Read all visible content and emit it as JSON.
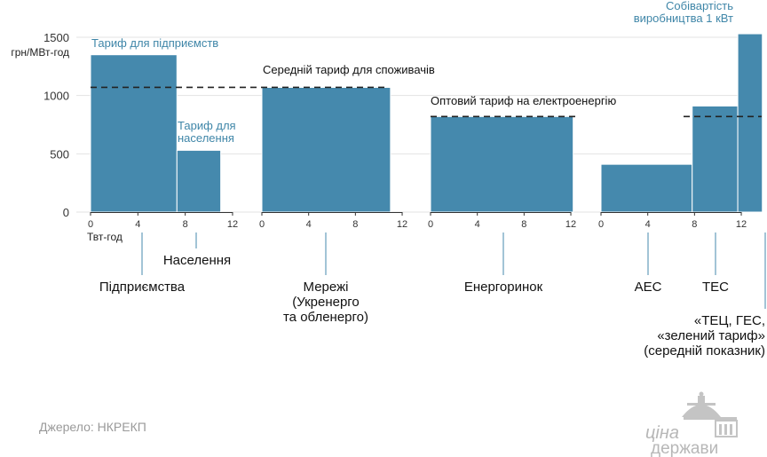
{
  "chart_data": {
    "type": "bar",
    "ylabel": "грн/МВт-год",
    "xlabel": "Твт-год",
    "ylim": [
      0,
      1500
    ],
    "yticks": [
      0,
      500,
      1000,
      1500
    ],
    "xticks": [
      "0",
      "4",
      "8",
      "12"
    ],
    "grid": true,
    "panels": [
      {
        "name": "Підприємства / Населення",
        "bars": [
          {
            "category": "Підприємства",
            "x_start": 0,
            "width": 7.3,
            "value": 1350,
            "label": "Тариф для підприємств"
          },
          {
            "category": "Населення",
            "x_start": 7.3,
            "width": 3.7,
            "value": 530,
            "label": "Тариф для населення"
          }
        ]
      },
      {
        "name": "Мережі",
        "bars": [
          {
            "category": "Мережі (Укренерго та обленерго)",
            "x_start": 0,
            "width": 11,
            "value": 1070
          }
        ],
        "reference_line": {
          "value": 1070,
          "label": "Середній тариф для споживачів"
        }
      },
      {
        "name": "Енергоринок",
        "bars": [
          {
            "category": "Енергоринок",
            "x_start": 0,
            "width": 12.2,
            "value": 820
          }
        ],
        "reference_line": {
          "value": 820,
          "label": "Оптовий тариф на електроенергію"
        }
      },
      {
        "name": "Собівартість виробництва 1 кВт",
        "bars": [
          {
            "category": "АЕС",
            "x_start": 0,
            "width": 7.8,
            "value": 410
          },
          {
            "category": "ТЕС",
            "x_start": 7.8,
            "width": 3.9,
            "value": 910
          },
          {
            "category": "«ТЕЦ, ГЕС, «зелений тариф» (середній показник)",
            "x_start": 11.7,
            "width": 2.1,
            "value": 1530
          }
        ],
        "reference_line": {
          "value": 820
        }
      }
    ]
  },
  "texts": {
    "unit_y": "грн/МВт-год",
    "unit_x": "Твт-год",
    "ann_enterprise": "Тариф для підприємств",
    "ann_population_1": "Тариф для",
    "ann_population_2": "населення",
    "ann_avg": "Середній тариф для споживачів",
    "ann_wholesale": "Оптовий тариф на електроенергію",
    "ann_cost_1": "Собівартість",
    "ann_cost_2": "виробництва 1 кВт",
    "cat_enterprise": "Підприємства",
    "cat_population": "Населення",
    "cat_networks_1": "Мережі",
    "cat_networks_2": "(Укренерго",
    "cat_networks_3": "та обленерго)",
    "cat_market": "Енергоринок",
    "cat_npp": "АЕС",
    "cat_tpp": "ТЕС",
    "cat_other_1": "«ТЕЦ, ГЕС,",
    "cat_other_2": "«зелений тариф»",
    "cat_other_3": "(середній показник)",
    "source": "Джерело: НКРЕКП",
    "logo_1": "ціна",
    "logo_2": "держави"
  },
  "colors": {
    "bar": "#4589ad",
    "bar_stroke": "#ffffff",
    "grid": "#e3e3e3",
    "annotation_blue": "#3f86a8",
    "reference_line": "#222222",
    "connector": "#4589ad"
  }
}
